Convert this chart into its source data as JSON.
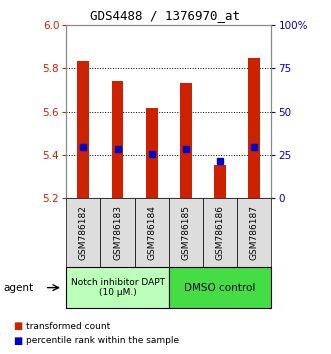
{
  "title": "GDS4488 / 1376970_at",
  "samples": [
    "GSM786182",
    "GSM786183",
    "GSM786184",
    "GSM786185",
    "GSM786186",
    "GSM786187"
  ],
  "bar_bottoms": [
    5.2,
    5.2,
    5.2,
    5.2,
    5.2,
    5.2
  ],
  "bar_tops": [
    5.835,
    5.74,
    5.615,
    5.73,
    5.355,
    5.845
  ],
  "percentile_values": [
    5.435,
    5.425,
    5.405,
    5.425,
    5.37,
    5.435
  ],
  "ylim_left": [
    5.2,
    6.0
  ],
  "ylim_right": [
    0,
    100
  ],
  "yticks_left": [
    5.2,
    5.4,
    5.6,
    5.8,
    6.0
  ],
  "yticks_right": [
    0,
    25,
    50,
    75,
    100
  ],
  "ytick_labels_right": [
    "0",
    "25",
    "50",
    "75",
    "100%"
  ],
  "bar_color": "#cc2200",
  "percentile_color": "#0000cc",
  "group1_label": "Notch inhibitor DAPT\n(10 μM.)",
  "group2_label": "DMSO control",
  "group1_color": "#bbffbb",
  "group2_color": "#44dd44",
  "legend_bar_label": "transformed count",
  "legend_percentile_label": "percentile rank within the sample",
  "agent_label": "agent",
  "background_color": "#ffffff",
  "left_axis_color": "#cc2200",
  "right_axis_color": "#0000cc"
}
